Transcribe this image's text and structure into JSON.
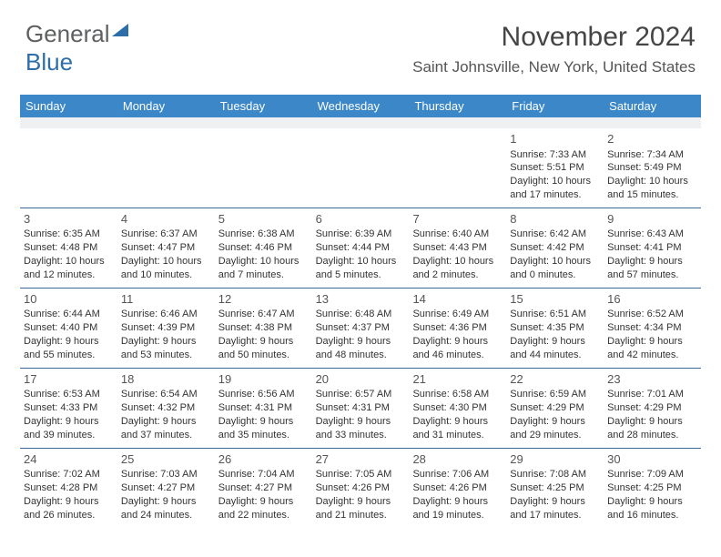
{
  "logo": {
    "text1": "General",
    "text2": "Blue"
  },
  "header": {
    "month_year": "November 2024",
    "location": "Saint Johnsville, New York, United States"
  },
  "colors": {
    "header_bg": "#3b87c8",
    "header_text": "#ffffff",
    "row_divider": "#3b6a99",
    "spacer_bg": "#eef0f1",
    "body_text": "#333333",
    "logo_gray": "#5f6062",
    "logo_blue": "#2d6ea8"
  },
  "day_names": [
    "Sunday",
    "Monday",
    "Tuesday",
    "Wednesday",
    "Thursday",
    "Friday",
    "Saturday"
  ],
  "weeks": [
    [
      null,
      null,
      null,
      null,
      null,
      {
        "n": "1",
        "sunrise": "7:33 AM",
        "sunset": "5:51 PM",
        "daylight": "10 hours and 17 minutes."
      },
      {
        "n": "2",
        "sunrise": "7:34 AM",
        "sunset": "5:49 PM",
        "daylight": "10 hours and 15 minutes."
      }
    ],
    [
      {
        "n": "3",
        "sunrise": "6:35 AM",
        "sunset": "4:48 PM",
        "daylight": "10 hours and 12 minutes."
      },
      {
        "n": "4",
        "sunrise": "6:37 AM",
        "sunset": "4:47 PM",
        "daylight": "10 hours and 10 minutes."
      },
      {
        "n": "5",
        "sunrise": "6:38 AM",
        "sunset": "4:46 PM",
        "daylight": "10 hours and 7 minutes."
      },
      {
        "n": "6",
        "sunrise": "6:39 AM",
        "sunset": "4:44 PM",
        "daylight": "10 hours and 5 minutes."
      },
      {
        "n": "7",
        "sunrise": "6:40 AM",
        "sunset": "4:43 PM",
        "daylight": "10 hours and 2 minutes."
      },
      {
        "n": "8",
        "sunrise": "6:42 AM",
        "sunset": "4:42 PM",
        "daylight": "10 hours and 0 minutes."
      },
      {
        "n": "9",
        "sunrise": "6:43 AM",
        "sunset": "4:41 PM",
        "daylight": "9 hours and 57 minutes."
      }
    ],
    [
      {
        "n": "10",
        "sunrise": "6:44 AM",
        "sunset": "4:40 PM",
        "daylight": "9 hours and 55 minutes."
      },
      {
        "n": "11",
        "sunrise": "6:46 AM",
        "sunset": "4:39 PM",
        "daylight": "9 hours and 53 minutes."
      },
      {
        "n": "12",
        "sunrise": "6:47 AM",
        "sunset": "4:38 PM",
        "daylight": "9 hours and 50 minutes."
      },
      {
        "n": "13",
        "sunrise": "6:48 AM",
        "sunset": "4:37 PM",
        "daylight": "9 hours and 48 minutes."
      },
      {
        "n": "14",
        "sunrise": "6:49 AM",
        "sunset": "4:36 PM",
        "daylight": "9 hours and 46 minutes."
      },
      {
        "n": "15",
        "sunrise": "6:51 AM",
        "sunset": "4:35 PM",
        "daylight": "9 hours and 44 minutes."
      },
      {
        "n": "16",
        "sunrise": "6:52 AM",
        "sunset": "4:34 PM",
        "daylight": "9 hours and 42 minutes."
      }
    ],
    [
      {
        "n": "17",
        "sunrise": "6:53 AM",
        "sunset": "4:33 PM",
        "daylight": "9 hours and 39 minutes."
      },
      {
        "n": "18",
        "sunrise": "6:54 AM",
        "sunset": "4:32 PM",
        "daylight": "9 hours and 37 minutes."
      },
      {
        "n": "19",
        "sunrise": "6:56 AM",
        "sunset": "4:31 PM",
        "daylight": "9 hours and 35 minutes."
      },
      {
        "n": "20",
        "sunrise": "6:57 AM",
        "sunset": "4:31 PM",
        "daylight": "9 hours and 33 minutes."
      },
      {
        "n": "21",
        "sunrise": "6:58 AM",
        "sunset": "4:30 PM",
        "daylight": "9 hours and 31 minutes."
      },
      {
        "n": "22",
        "sunrise": "6:59 AM",
        "sunset": "4:29 PM",
        "daylight": "9 hours and 29 minutes."
      },
      {
        "n": "23",
        "sunrise": "7:01 AM",
        "sunset": "4:29 PM",
        "daylight": "9 hours and 28 minutes."
      }
    ],
    [
      {
        "n": "24",
        "sunrise": "7:02 AM",
        "sunset": "4:28 PM",
        "daylight": "9 hours and 26 minutes."
      },
      {
        "n": "25",
        "sunrise": "7:03 AM",
        "sunset": "4:27 PM",
        "daylight": "9 hours and 24 minutes."
      },
      {
        "n": "26",
        "sunrise": "7:04 AM",
        "sunset": "4:27 PM",
        "daylight": "9 hours and 22 minutes."
      },
      {
        "n": "27",
        "sunrise": "7:05 AM",
        "sunset": "4:26 PM",
        "daylight": "9 hours and 21 minutes."
      },
      {
        "n": "28",
        "sunrise": "7:06 AM",
        "sunset": "4:26 PM",
        "daylight": "9 hours and 19 minutes."
      },
      {
        "n": "29",
        "sunrise": "7:08 AM",
        "sunset": "4:25 PM",
        "daylight": "9 hours and 17 minutes."
      },
      {
        "n": "30",
        "sunrise": "7:09 AM",
        "sunset": "4:25 PM",
        "daylight": "9 hours and 16 minutes."
      }
    ]
  ],
  "labels": {
    "sunrise_prefix": "Sunrise: ",
    "sunset_prefix": "Sunset: ",
    "daylight_prefix": "Daylight: "
  }
}
